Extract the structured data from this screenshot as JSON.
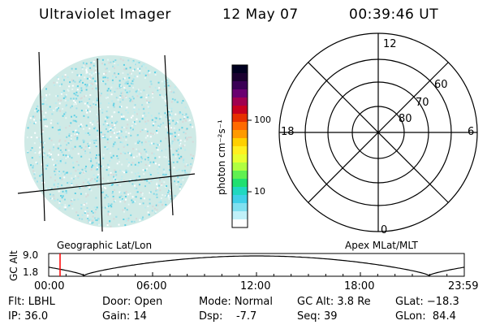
{
  "header": {
    "instrument": "Ultraviolet Imager",
    "date": "12 May 07",
    "time": "00:39:46 UT"
  },
  "colorbar": {
    "label": "photon cm⁻²s⁻¹",
    "ticks": [
      "100",
      "10"
    ],
    "colors": [
      "#000020",
      "#1a0030",
      "#3a0055",
      "#6a0070",
      "#a00050",
      "#c80020",
      "#e63000",
      "#ff6a00",
      "#ff9a00",
      "#ffd000",
      "#fff020",
      "#e8ff30",
      "#b0ff40",
      "#60f050",
      "#20e070",
      "#20d8c0",
      "#40d0e8",
      "#80e0f0",
      "#c0f0f8",
      "#ffffff"
    ]
  },
  "polar_plot": {
    "mlt_labels": {
      "top": "12",
      "left": "18",
      "right": "6",
      "bottom": "0"
    },
    "lat_labels": [
      "60",
      "70",
      "80"
    ]
  },
  "labels": {
    "geographic": "Geographic Lat/Lon",
    "apex": "Apex MLat/MLT"
  },
  "orbit_plot": {
    "y_axis_label": "GC Alt",
    "y_ticks": [
      "9.0",
      "1.8"
    ],
    "x_ticks": [
      "00:00",
      "06:00",
      "12:00",
      "18:00",
      "23:59"
    ],
    "marker_color": "#ff0000"
  },
  "status": {
    "flt": "Flt: LBHL",
    "ip": "IP: 36.0",
    "door": "Door: Open",
    "gain": "Gain: 14",
    "mode": "Mode: Normal",
    "dsp": "Dsp:    -7.7",
    "gc_alt": "GC Alt: 3.8 Re",
    "seq": "Seq: 39",
    "glat": "GLat: −18.3",
    "glon": "GLon:  84.4"
  }
}
